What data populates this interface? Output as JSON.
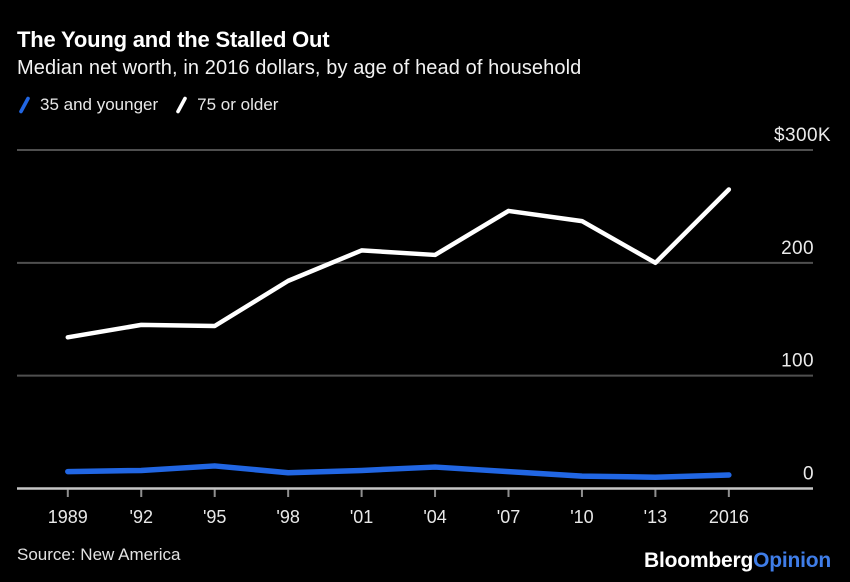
{
  "header": {
    "title": "The Young and the Stalled Out",
    "subtitle": "Median net worth, in 2016 dollars, by age of head of household"
  },
  "legend": {
    "items": [
      {
        "label": "35 and younger",
        "color": "#2166e3"
      },
      {
        "label": "75 or older",
        "color": "#ffffff"
      }
    ]
  },
  "chart_data": {
    "type": "line",
    "title": "The Young and the Stalled Out",
    "subtitle": "Median net worth, in 2016 dollars, by age of head of household",
    "x": [
      1989,
      1992,
      1995,
      1998,
      2001,
      2004,
      2007,
      2010,
      2013,
      2016
    ],
    "x_tick_labels": [
      "1989",
      "'92",
      "'95",
      "'98",
      "'01",
      "'04",
      "'07",
      "'10",
      "'13",
      "2016"
    ],
    "series": [
      {
        "name": "35 and younger",
        "color": "#2166e3",
        "stroke_width": 5.5,
        "values": [
          15,
          16,
          20,
          14,
          16,
          19,
          15,
          11,
          10,
          12
        ]
      },
      {
        "name": "75 or older",
        "color": "#ffffff",
        "stroke_width": 4.5,
        "values": [
          134,
          145,
          144,
          184,
          211,
          207,
          246,
          237,
          200,
          265
        ]
      }
    ],
    "values_unit": "thousands of 2016 dollars",
    "ylim": [
      0,
      300
    ],
    "y_ticks": [
      {
        "value": 300,
        "label": "$300K"
      },
      {
        "value": 200,
        "label": "200"
      },
      {
        "value": 100,
        "label": "100"
      },
      {
        "value": 0,
        "label": "0"
      }
    ],
    "grid": "horizontal",
    "y_axis_side": "right",
    "legend_position": "top-left"
  },
  "footer": {
    "source": "Source: New America",
    "brand": {
      "primary": "Bloomberg",
      "secondary": "Opinion"
    }
  },
  "colors": {
    "background": "#000000",
    "grid_line": "#4f4f4f",
    "axis_line": "#c6c6c6",
    "tick": "#8f8f8f",
    "text_primary": "#ffffff",
    "text_secondary": "#e8e8e8",
    "accent_blue": "#2166e3",
    "brand_blue": "#3f7de8"
  }
}
